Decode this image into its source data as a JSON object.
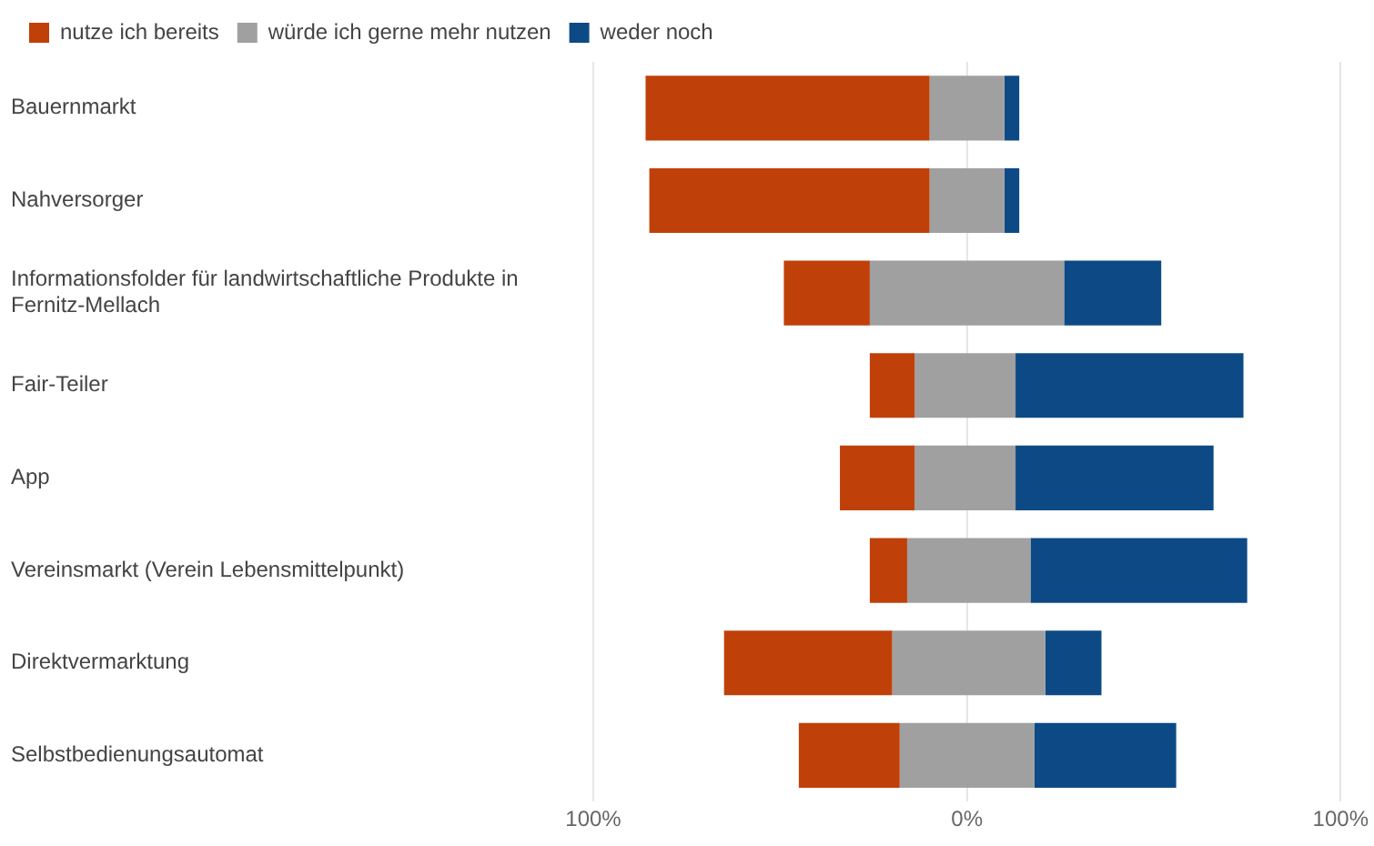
{
  "chart_data": {
    "type": "bar",
    "orientation": "horizontal",
    "categories": [
      "Bauernmarkt",
      "Nahversorger",
      "Informationsfolder für landwirtschaftliche Produkte in Fernitz-Mellach",
      "Fair-Teiler",
      "App",
      "Vereinsmarkt (Verein Lebensmittelpunkt)",
      "Direktvermarktung",
      "Selbstbedienungsautomat"
    ],
    "series": [
      {
        "name": "nutze ich bereits",
        "color": "#c0400a",
        "base": [
          -86,
          -85,
          -49,
          -26,
          -34,
          -26,
          -65,
          -45
        ],
        "values": [
          76,
          75,
          23,
          12,
          20,
          10,
          45,
          27
        ]
      },
      {
        "name": "würde ich gerne mehr nutzen",
        "color": "#a0a0a0",
        "base": [
          -10,
          -10,
          -26,
          -14,
          -14,
          -16,
          -20,
          -18
        ],
        "values": [
          20,
          20,
          52,
          27,
          27,
          33,
          41,
          36
        ]
      },
      {
        "name": "weder noch",
        "color": "#0d4a85",
        "base": [
          10,
          10,
          26,
          13,
          13,
          17,
          21,
          18
        ],
        "values": [
          4,
          4,
          26,
          61,
          53,
          58,
          15,
          38
        ]
      }
    ],
    "xlim": [
      -100,
      100
    ],
    "xticks": [
      {
        "value": -100,
        "label": "100%"
      },
      {
        "value": 0,
        "label": "0%"
      },
      {
        "value": 100,
        "label": "100%"
      }
    ],
    "grid": "x",
    "legend": "top left"
  }
}
